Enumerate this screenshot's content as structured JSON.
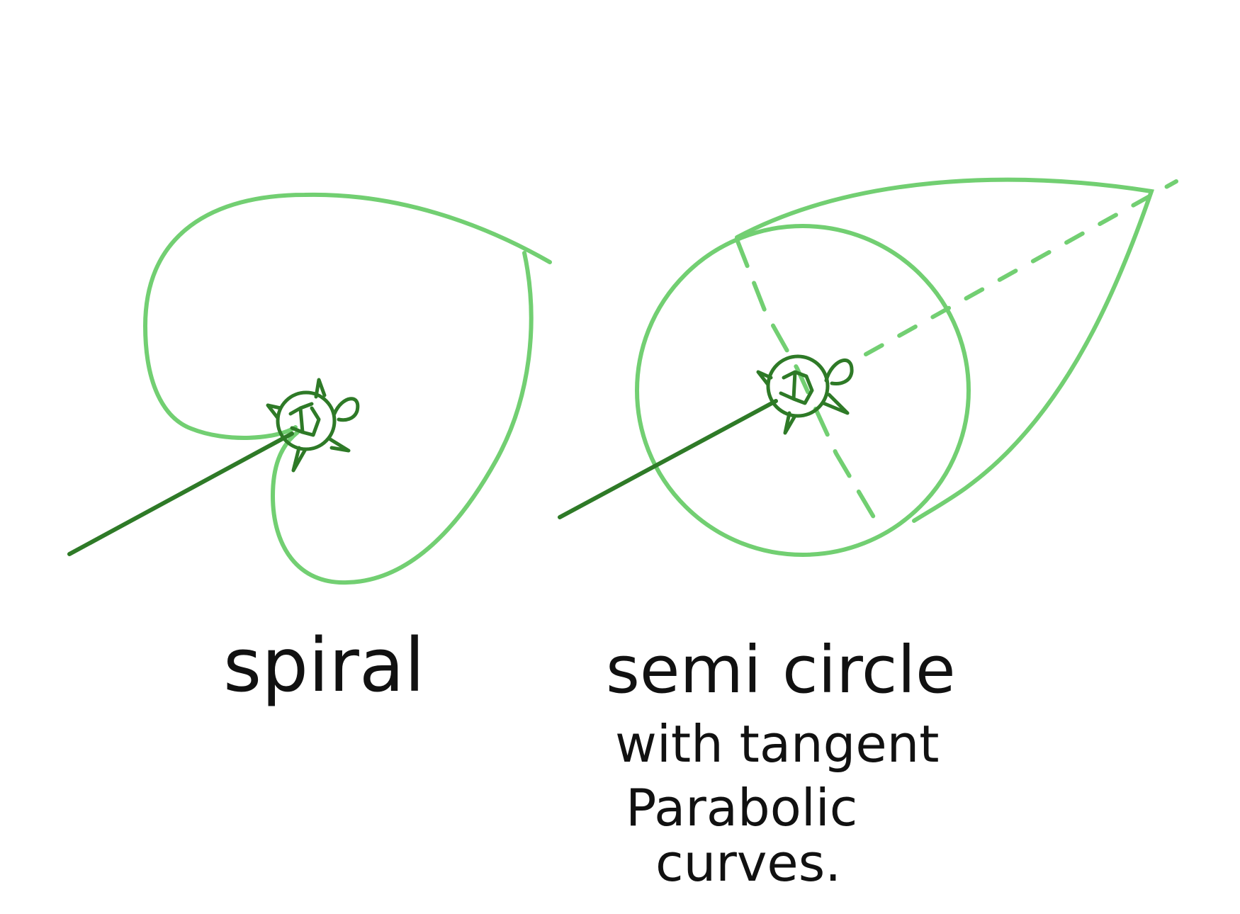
{
  "colors": {
    "background": "#ffffff",
    "path_light_green": "#72cf72",
    "arrow_dark_green": "#2e7a27",
    "text": "#111111"
  },
  "left_figure": {
    "caption": "spiral"
  },
  "right_figure": {
    "caption_lines": [
      "semi circle",
      "with tangent",
      "Parabolic",
      "curves."
    ]
  },
  "icons": [
    "turtle-icon",
    "turtle-icon"
  ]
}
